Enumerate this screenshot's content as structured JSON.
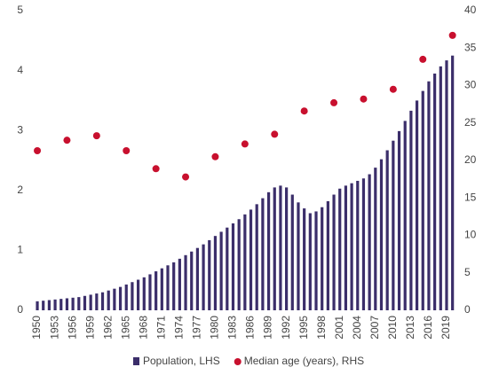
{
  "chart_data": {
    "type": "bar",
    "x": [
      1950,
      1951,
      1952,
      1953,
      1954,
      1955,
      1956,
      1957,
      1958,
      1959,
      1960,
      1961,
      1962,
      1963,
      1964,
      1965,
      1966,
      1967,
      1968,
      1969,
      1970,
      1971,
      1972,
      1973,
      1974,
      1975,
      1976,
      1977,
      1978,
      1979,
      1980,
      1981,
      1982,
      1983,
      1984,
      1985,
      1986,
      1987,
      1988,
      1989,
      1990,
      1991,
      1992,
      1993,
      1994,
      1995,
      1996,
      1997,
      1998,
      1999,
      2000,
      2001,
      2002,
      2003,
      2004,
      2005,
      2006,
      2007,
      2008,
      2009,
      2010,
      2011,
      2012,
      2013,
      2014,
      2015,
      2016,
      2017,
      2018,
      2019,
      2020
    ],
    "series": [
      {
        "name": "Population, LHS",
        "color": "#3b2e6a",
        "values": [
          0.15,
          0.16,
          0.17,
          0.18,
          0.19,
          0.2,
          0.21,
          0.22,
          0.24,
          0.26,
          0.28,
          0.3,
          0.33,
          0.36,
          0.39,
          0.43,
          0.47,
          0.51,
          0.55,
          0.6,
          0.65,
          0.7,
          0.75,
          0.8,
          0.86,
          0.92,
          0.98,
          1.04,
          1.1,
          1.17,
          1.24,
          1.31,
          1.38,
          1.45,
          1.52,
          1.6,
          1.68,
          1.77,
          1.87,
          1.97,
          2.05,
          2.08,
          2.05,
          1.93,
          1.8,
          1.7,
          1.62,
          1.65,
          1.72,
          1.82,
          1.93,
          2.03,
          2.08,
          2.12,
          2.16,
          2.2,
          2.27,
          2.38,
          2.52,
          2.67,
          2.83,
          2.99,
          3.16,
          3.33,
          3.5,
          3.66,
          3.82,
          3.95,
          4.07,
          4.17,
          4.25
        ]
      },
      {
        "name": "Median age (years), RHS",
        "color": "#c8102e",
        "axis": "y2",
        "type": "scatter",
        "x": [
          1950,
          1955,
          1960,
          1965,
          1970,
          1975,
          1980,
          1985,
          1990,
          1995,
          2000,
          2005,
          2010,
          2015,
          2020
        ],
        "values": [
          21.3,
          22.7,
          23.3,
          21.3,
          18.9,
          17.8,
          20.5,
          22.2,
          23.5,
          26.6,
          27.7,
          28.2,
          29.5,
          33.5,
          36.7
        ]
      }
    ],
    "xlim": [
      1949.5,
      2020.5
    ],
    "xticks": [
      1950,
      1953,
      1956,
      1959,
      1962,
      1965,
      1968,
      1971,
      1974,
      1977,
      1980,
      1983,
      1986,
      1989,
      1992,
      1995,
      1998,
      2001,
      2004,
      2007,
      2010,
      2013,
      2016,
      2019
    ],
    "ylim": [
      0,
      5
    ],
    "yticks": [
      0,
      1,
      2,
      3,
      4,
      5
    ],
    "y2lim": [
      0,
      40
    ],
    "y2ticks": [
      0,
      5,
      10,
      15,
      20,
      25,
      30,
      35,
      40
    ],
    "legend": "bottom"
  }
}
